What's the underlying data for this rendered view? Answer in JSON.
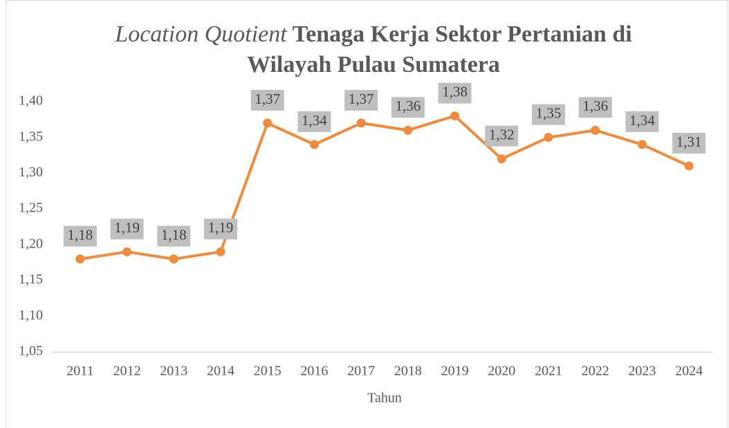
{
  "chart_data": {
    "type": "line",
    "title": [
      "Location Quotient",
      "Tenaga Kerja Sektor Pertanian di",
      "Wilayah Pulau Sumatera"
    ],
    "x_label": "Tahun",
    "categories": [
      "2011",
      "2012",
      "2013",
      "2014",
      "2015",
      "2016",
      "2017",
      "2018",
      "2019",
      "2020",
      "2021",
      "2022",
      "2023",
      "2024"
    ],
    "values": [
      1.18,
      1.19,
      1.18,
      1.19,
      1.37,
      1.34,
      1.37,
      1.36,
      1.38,
      1.32,
      1.35,
      1.36,
      1.34,
      1.31
    ],
    "value_labels": [
      "1,18",
      "1,19",
      "1,18",
      "1,19",
      "1,37",
      "1,34",
      "1,37",
      "1,36",
      "1,38",
      "1,32",
      "1,35",
      "1,36",
      "1,34",
      "1,31"
    ],
    "color": "#ef8b3a",
    "ylim": [
      1.05,
      1.4
    ],
    "yticks": [
      {
        "value": 1.05,
        "label": "1,05"
      },
      {
        "value": 1.1,
        "label": "1,10"
      },
      {
        "value": 1.15,
        "label": "1,15"
      },
      {
        "value": 1.2,
        "label": "1,20"
      },
      {
        "value": 1.25,
        "label": "1,25"
      },
      {
        "value": 1.3,
        "label": "1,30"
      },
      {
        "value": 1.35,
        "label": "1,35"
      },
      {
        "value": 1.4,
        "label": "1,40"
      }
    ],
    "grid": false
  }
}
